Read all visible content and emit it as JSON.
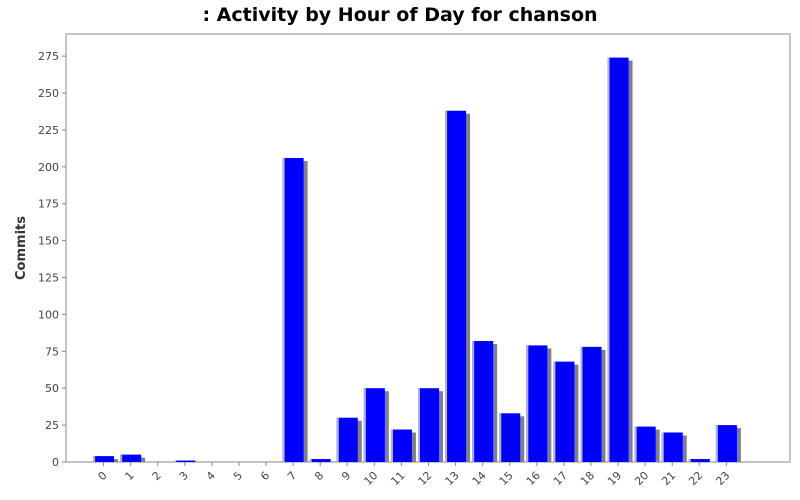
{
  "chart_data": {
    "type": "bar",
    "title": ": Activity by Hour of Day for chanson",
    "xlabel": "",
    "ylabel": "Commits",
    "categories": [
      "0",
      "1",
      "2",
      "3",
      "4",
      "5",
      "6",
      "7",
      "8",
      "9",
      "10",
      "11",
      "12",
      "13",
      "14",
      "15",
      "16",
      "17",
      "18",
      "19",
      "20",
      "21",
      "22",
      "23"
    ],
    "values": [
      4,
      5,
      0,
      1,
      0,
      0,
      0,
      206,
      2,
      30,
      50,
      22,
      50,
      238,
      82,
      33,
      79,
      68,
      78,
      274,
      24,
      20,
      2,
      25
    ],
    "yticks": [
      0,
      25,
      50,
      75,
      100,
      125,
      150,
      175,
      200,
      225,
      250,
      275
    ],
    "ylim": [
      0,
      290
    ],
    "grid": false,
    "legend": "none",
    "colors": {
      "bar": "#0000ff",
      "bar_highlight": "#b0b0ff",
      "shadow": "#808080",
      "axis": "#888888",
      "plot_bg": "#ffffff"
    }
  }
}
